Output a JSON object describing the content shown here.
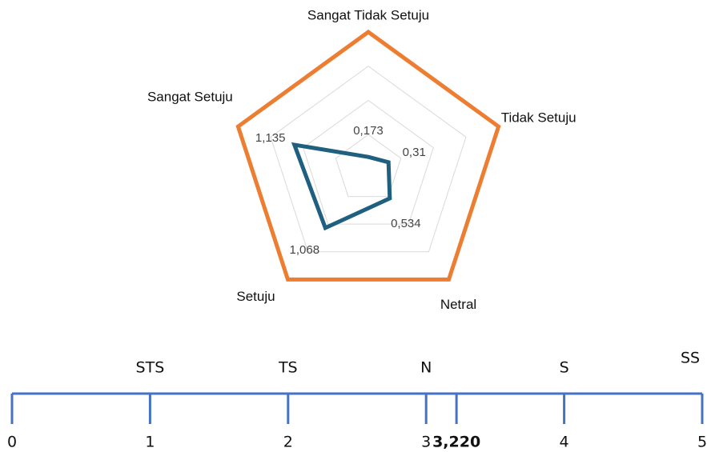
{
  "chart_data": [
    {
      "type": "radar",
      "categories": [
        "Sangat Tidak Setuju",
        "Tidak Setuju",
        "Netral",
        "Setuju",
        "Sangat Setuju"
      ],
      "rlim": [
        0,
        2
      ],
      "rticks": [
        0.5,
        1,
        1.5,
        2
      ],
      "grid": true,
      "series": [
        {
          "color": "#ed7d31",
          "values": [
            2,
            2,
            2,
            2,
            2
          ]
        },
        {
          "color": "#1f5f7f",
          "values": [
            0.173,
            0.31,
            0.534,
            1.068,
            1.135
          ],
          "value_labels": [
            "0,173",
            "0,31",
            "0,534",
            "1,068",
            "1,135"
          ]
        }
      ]
    },
    {
      "type": "number_line",
      "xlim": [
        0,
        5
      ],
      "xticks": [
        0,
        1,
        2,
        3,
        {
          "value": 3.22,
          "label": "3,220"
        },
        4,
        5
      ],
      "color": "#4472c4",
      "categories": [
        "STS",
        "TS",
        "N",
        "S",
        "SS"
      ],
      "x": [
        1,
        2,
        3,
        4,
        5
      ]
    }
  ]
}
